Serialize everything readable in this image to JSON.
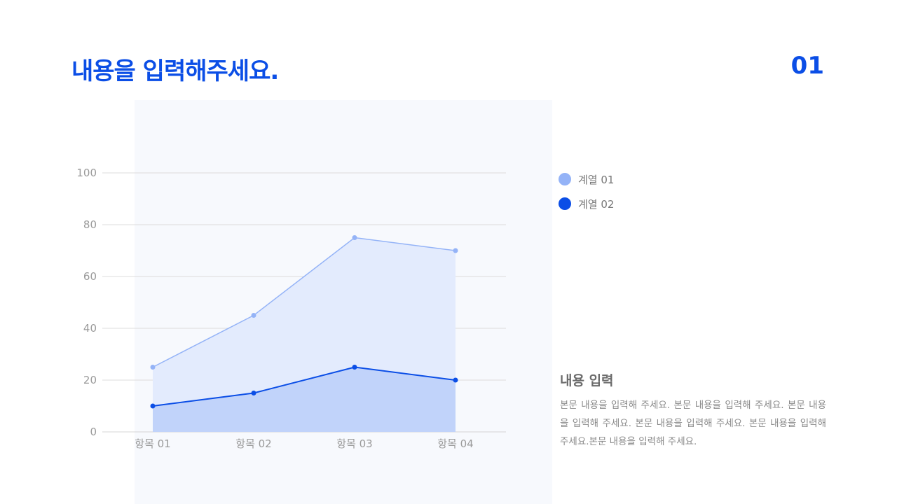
{
  "header": {
    "title": "내용을 입력해주세요.",
    "page_number": "01"
  },
  "legend": [
    {
      "label": "계열 01",
      "color": "#94b3f7"
    },
    {
      "label": "계열 02",
      "color": "#0b4ee6"
    }
  ],
  "content": {
    "heading": "내용 입력",
    "body": "본문 내용을 입력해 주세요. 본문 내용을 입력해 주세요. 본문 내용을 입력해 주세요. 본문 내용을 입력해 주세요. 본문 내용을 입력해 주세요.본문 내용을 입력해 주세요."
  },
  "chart_data": {
    "type": "area",
    "categories": [
      "항목 01",
      "항목 02",
      "항목 03",
      "항목 04"
    ],
    "series": [
      {
        "name": "계열 01",
        "values": [
          25,
          45,
          75,
          70
        ],
        "color": "#94b3f7",
        "fill": "#e3ebfd"
      },
      {
        "name": "계열 02",
        "values": [
          10,
          15,
          25,
          20
        ],
        "color": "#0b4ee6",
        "fill": "#c1d3fa"
      }
    ],
    "yticks": [
      0,
      20,
      40,
      60,
      80,
      100
    ],
    "ylim": [
      0,
      100
    ],
    "grid": true,
    "legend_position": "right"
  }
}
